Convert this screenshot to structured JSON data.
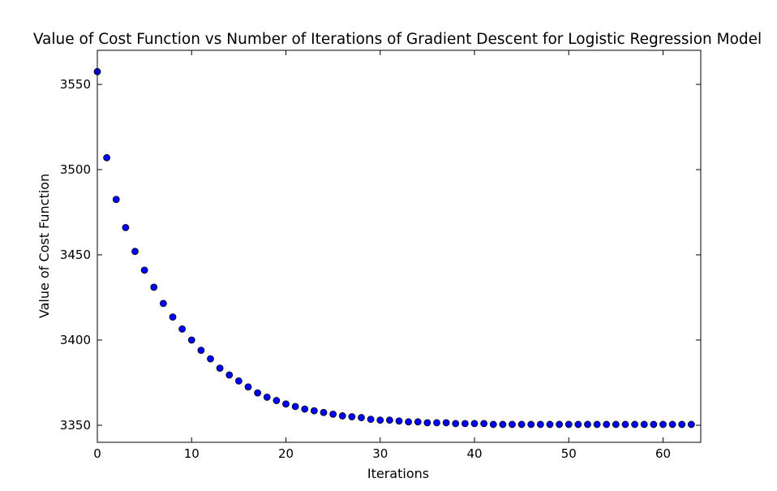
{
  "chart_data": {
    "type": "scatter",
    "title": "Value of Cost Function vs Number of Iterations of Gradient Descent for Logistic Regression Model",
    "xlabel": "Iterations",
    "ylabel": "Value of Cost Function",
    "xlim": [
      0,
      64
    ],
    "ylim": [
      3340,
      3570
    ],
    "xticks": [
      0,
      10,
      20,
      30,
      40,
      50,
      60
    ],
    "yticks": [
      3350,
      3400,
      3450,
      3500,
      3550
    ],
    "grid": false,
    "marker_color": "#0000ff",
    "marker_edge_color": "#000000",
    "series": [
      {
        "x": [
          0,
          1,
          2,
          3,
          4,
          5,
          6,
          7,
          8,
          9,
          10,
          11,
          12,
          13,
          14,
          15,
          16,
          17,
          18,
          19,
          20,
          21,
          22,
          23,
          24,
          25,
          26,
          27,
          28,
          29,
          30,
          31,
          32,
          33,
          34,
          35,
          36,
          37,
          38,
          39,
          40,
          41,
          42,
          43,
          44,
          45,
          46,
          47,
          48,
          49,
          50,
          51,
          52,
          53,
          54,
          55,
          56,
          57,
          58,
          59,
          60,
          61,
          62,
          63
        ],
        "y": [
          3557.5,
          3507,
          3482.5,
          3466,
          3452,
          3441,
          3431,
          3421.5,
          3413.5,
          3406.5,
          3400,
          3394,
          3389,
          3383.5,
          3379.5,
          3376,
          3372.5,
          3369,
          3366.5,
          3364.5,
          3362.5,
          3361,
          3359.5,
          3358.5,
          3357.5,
          3356.5,
          3355.5,
          3355,
          3354.5,
          3353.5,
          3353,
          3353,
          3352.5,
          3352,
          3352,
          3351.5,
          3351.5,
          3351.5,
          3351,
          3351,
          3351,
          3351,
          3350.5,
          3350.5,
          3350.5,
          3350.5,
          3350.5,
          3350.5,
          3350.5,
          3350.5,
          3350.5,
          3350.5,
          3350.5,
          3350.5,
          3350.5,
          3350.5,
          3350.5,
          3350.5,
          3350.5,
          3350.5,
          3350.5,
          3350.5,
          3350.5,
          3350.5
        ]
      }
    ]
  }
}
